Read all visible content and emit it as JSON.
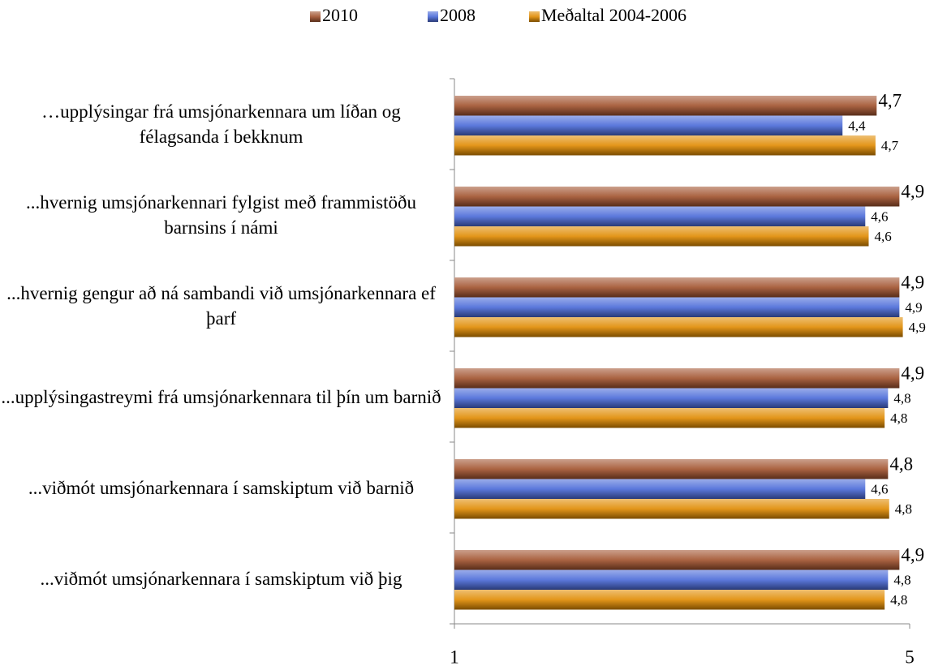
{
  "chart_data": {
    "type": "barh",
    "categories": [
      "…upplýsingar frá umsjónarkennara um líðan og félagsanda í bekknum",
      "...hvernig umsjónarkennari fylgist með frammistöðu barnsins í námi",
      "...hvernig gengur að ná sambandi við umsjónarkennara ef þarf",
      "...upplýsingastreymi frá umsjónarkennara til þín um barnið",
      "...viðmót umsjónarkennara í samskiptum við barnið",
      "...viðmót umsjónarkennara í samskiptum við þig"
    ],
    "series": [
      {
        "name": "2010",
        "color": "#a0522d",
        "values": [
          4.71,
          4.91,
          4.91,
          4.91,
          4.81,
          4.91
        ],
        "value_labels": [
          "4,7",
          "4,9",
          "4,9",
          "4,9",
          "4,8",
          "4,9"
        ]
      },
      {
        "name": "2008",
        "color": "#4a6ad8",
        "values": [
          4.41,
          4.61,
          4.91,
          4.81,
          4.61,
          4.81
        ],
        "value_labels": [
          "4,4",
          "4,6",
          "4,9",
          "4,8",
          "4,6",
          "4,8"
        ]
      },
      {
        "name": "Meðaltal 2004-2006",
        "color": "#e08a00",
        "values": [
          4.7,
          4.64,
          4.94,
          4.78,
          4.82,
          4.78
        ],
        "value_labels": [
          "4,7",
          "4,6",
          "4,9",
          "4,8",
          "4,8",
          "4,8"
        ]
      }
    ],
    "xlim": [
      1,
      5
    ],
    "xticks": [
      1,
      5
    ],
    "legend": "top"
  }
}
